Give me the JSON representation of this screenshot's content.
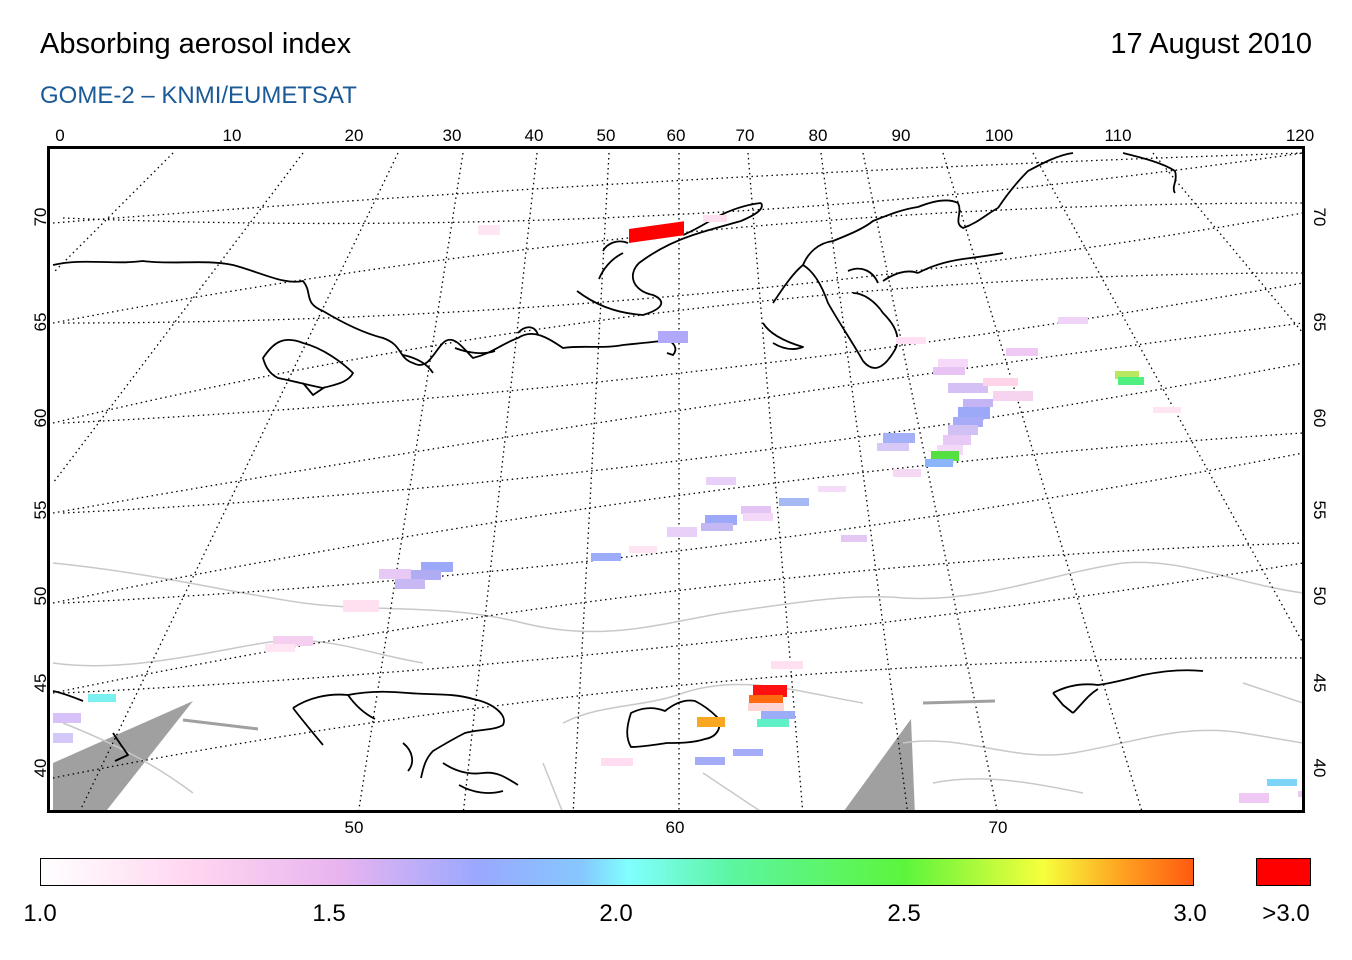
{
  "header": {
    "title": "Absorbing aerosol index",
    "date": "17 August 2010",
    "subtitle": "GOME-2  –  KNMI/EUMETSAT"
  },
  "map": {
    "top_lon_labels": [
      "0",
      "10",
      "20",
      "30",
      "40",
      "50",
      "60",
      "70",
      "80",
      "90",
      "100",
      "110",
      "120"
    ],
    "bottom_lon_labels": [
      "50",
      "60",
      "70"
    ],
    "lat_labels": [
      "70",
      "65",
      "60",
      "55",
      "50",
      "45",
      "40"
    ],
    "colors": {
      "coastline": "#000000",
      "borders": "#c8c8c8",
      "graticule": "#000000",
      "no_data": "#a0a0a0"
    }
  },
  "legend": {
    "labels": [
      "1.0",
      "1.5",
      "2.0",
      "2.5",
      "3.0"
    ],
    "over_label": ">3.0",
    "over_color": "#ff0000"
  }
}
